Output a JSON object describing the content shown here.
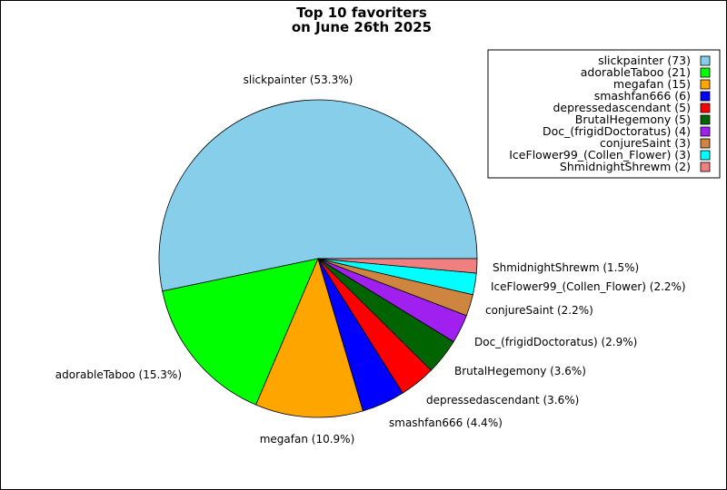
{
  "chart_data": {
    "type": "pie",
    "title_lines": [
      "Top 10 favoriters",
      "on June 26th 2025"
    ],
    "legend_position": "top-right",
    "slices": [
      {
        "name": "slickpainter",
        "value": 73,
        "color": "#87CEEB",
        "legend": "slickpainter (73)",
        "label": "slickpainter (53.3%)"
      },
      {
        "name": "adorableTaboo",
        "value": 21,
        "color": "#00FF00",
        "legend": "adorableTaboo (21)",
        "label": "adorableTaboo (15.3%)"
      },
      {
        "name": "megafan",
        "value": 15,
        "color": "#FFA500",
        "legend": "megafan (15)",
        "label": "megafan (10.9%)"
      },
      {
        "name": "smashfan666",
        "value": 6,
        "color": "#0000FF",
        "legend": "smashfan666 (6)",
        "label": "smashfan666 (4.4%)"
      },
      {
        "name": "depressedascendant",
        "value": 5,
        "color": "#FF0000",
        "legend": "depressedascendant (5)",
        "label": "depressedascendant (3.6%)"
      },
      {
        "name": "BrutalHegemony",
        "value": 5,
        "color": "#006400",
        "legend": "BrutalHegemony (5)",
        "label": "BrutalHegemony (3.6%)"
      },
      {
        "name": "Doc_(frigidDoctoratus)",
        "value": 4,
        "color": "#A020F0",
        "legend": "Doc_(frigidDoctoratus) (4)",
        "label": "Doc_(frigidDoctoratus) (2.9%)"
      },
      {
        "name": "conjureSaint",
        "value": 3,
        "color": "#CD853F",
        "legend": "conjureSaint (3)",
        "label": "conjureSaint (2.2%)"
      },
      {
        "name": "IceFlower99_(Collen_Flower)",
        "value": 3,
        "color": "#00FFFF",
        "legend": "IceFlower99_(Collen_Flower) (3)",
        "label": "IceFlower99_(Collen_Flower) (2.2%)"
      },
      {
        "name": "ShmidnightShrewm",
        "value": 2,
        "color": "#F08080",
        "legend": "ShmidnightShrewm (2)",
        "label": "ShmidnightShrewm (1.5%)"
      }
    ]
  }
}
